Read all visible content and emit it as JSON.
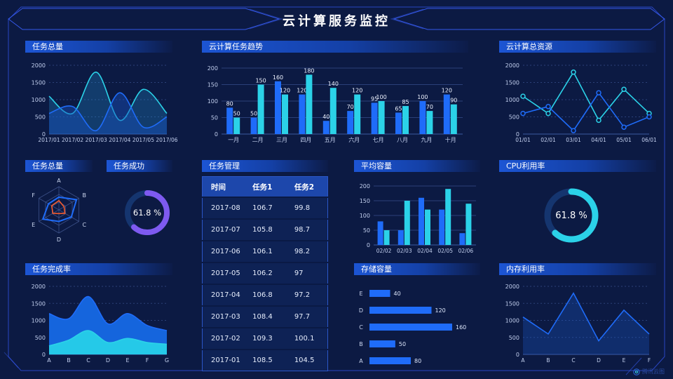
{
  "title": "云计算服务监控",
  "watermark": "腾讯云图",
  "colors": {
    "blue": "#1f6cf9",
    "cyan": "#2bd2e8",
    "purple": "#7e5af0",
    "red": "#f25b2e",
    "track": "#15356f",
    "grid": "#2b4078",
    "axisline": "#3d5aa0",
    "axis": "#c2cfee",
    "label": "#eef3ff",
    "frame": "#2c4ad0"
  },
  "chart_data": [
    {
      "id": "task-total-trend",
      "type": "line",
      "title": "任务总量",
      "smooth": true,
      "dashed": true,
      "categories": [
        "2017/01",
        "2017/02",
        "2017/03",
        "2017/04",
        "2017/05",
        "2017/06"
      ],
      "series": [
        {
          "color": "cyan",
          "values": [
            1100,
            600,
            1800,
            400,
            1300,
            600
          ],
          "fill": "rgba(35,150,215,0.28)"
        },
        {
          "color": "blue",
          "values": [
            600,
            800,
            100,
            1200,
            200,
            500
          ],
          "fill": "rgba(25,80,190,0.45)"
        }
      ],
      "ylim": [
        0,
        2000
      ],
      "yticks": [
        0,
        500,
        1000,
        1500,
        2000
      ]
    },
    {
      "id": "cloud-task-trend",
      "type": "bar",
      "title": "云计算任务趋势",
      "labels": true,
      "categories": [
        "一月",
        "二月",
        "三月",
        "四月",
        "五月",
        "六月",
        "七月",
        "八月",
        "九月",
        "十月"
      ],
      "series": [
        {
          "color": "blue",
          "values": [
            80,
            50,
            160,
            120,
            40,
            70,
            95,
            65,
            100,
            120
          ]
        },
        {
          "color": "cyan",
          "values": [
            50,
            150,
            120,
            180,
            140,
            120,
            100,
            85,
            70,
            90
          ]
        }
      ],
      "ylim": [
        0,
        200
      ],
      "yticks": [
        0,
        50,
        100,
        150,
        200
      ]
    },
    {
      "id": "cloud-total-resources",
      "type": "line",
      "title": "云计算总资源",
      "markers": true,
      "dashed": true,
      "categories": [
        "01/01",
        "02/01",
        "03/01",
        "04/01",
        "05/01",
        "06/01"
      ],
      "series": [
        {
          "color": "cyan",
          "values": [
            1100,
            600,
            1800,
            400,
            1300,
            600
          ]
        },
        {
          "color": "blue",
          "values": [
            600,
            800,
            100,
            1200,
            200,
            500
          ]
        }
      ],
      "ylim": [
        0,
        2000
      ],
      "yticks": [
        0,
        500,
        1000,
        1500,
        2000
      ]
    },
    {
      "id": "task-total-radar",
      "type": "radar",
      "title": "任务总量",
      "indicators": [
        "A",
        "B",
        "C",
        "D",
        "E",
        "F"
      ],
      "max": 100,
      "series": [
        {
          "color": "blue",
          "values": [
            55,
            88,
            62,
            50,
            80,
            52
          ]
        },
        {
          "color": "red",
          "values": [
            40,
            26,
            30,
            16,
            30,
            36
          ]
        }
      ]
    },
    {
      "id": "task-success",
      "type": "donut",
      "title": "任务成功",
      "value": 61.8,
      "label": "61.8 %",
      "color": "purple"
    },
    {
      "id": "task-management",
      "type": "table",
      "title": "任务管理",
      "headers": [
        "时间",
        "任务1",
        "任务2"
      ],
      "rows": [
        [
          "2017-08",
          "106.7",
          "99.8"
        ],
        [
          "2017-07",
          "105.8",
          "98.7"
        ],
        [
          "2017-06",
          "106.1",
          "98.2"
        ],
        [
          "2017-05",
          "106.2",
          "97"
        ],
        [
          "2017-04",
          "106.8",
          "97.2"
        ],
        [
          "2017-03",
          "108.4",
          "97.7"
        ],
        [
          "2017-02",
          "109.3",
          "100.1"
        ],
        [
          "2017-01",
          "108.5",
          "104.5"
        ]
      ]
    },
    {
      "id": "avg-capacity",
      "type": "bar",
      "title": "平均容量",
      "categories": [
        "02/02",
        "02/03",
        "02/04",
        "02/05",
        "02/06"
      ],
      "series": [
        {
          "color": "blue",
          "values": [
            80,
            50,
            160,
            120,
            40
          ]
        },
        {
          "color": "cyan",
          "values": [
            50,
            150,
            120,
            190,
            140
          ]
        }
      ],
      "ylim": [
        0,
        200
      ],
      "yticks": [
        0,
        50,
        100,
        150,
        200
      ]
    },
    {
      "id": "cpu-utilization",
      "type": "donut",
      "title": "CPU利用率",
      "value": 61.8,
      "label": "61.8 %",
      "color": "cyan"
    },
    {
      "id": "task-completion",
      "type": "line",
      "title": "任务完成率",
      "smooth": true,
      "dashed": true,
      "categories": [
        "A",
        "B",
        "C",
        "D",
        "E",
        "F",
        "G"
      ],
      "series": [
        {
          "color": "blue",
          "values": [
            1200,
            1050,
            1700,
            900,
            1200,
            850,
            700
          ],
          "fill": "#1565dd"
        },
        {
          "color": "cyan",
          "values": [
            250,
            420,
            700,
            350,
            470,
            350,
            300
          ],
          "fill": "#25c9e8"
        }
      ],
      "ylim": [
        0,
        2000
      ],
      "yticks": [
        0,
        500,
        1000,
        1500,
        2000
      ]
    },
    {
      "id": "storage-capacity",
      "type": "hbar",
      "title": "存储容量",
      "categories": [
        "E",
        "D",
        "C",
        "B",
        "A"
      ],
      "values": [
        40,
        120,
        160,
        50,
        80
      ],
      "xmax": 160,
      "color": "blue"
    },
    {
      "id": "memory-utilization",
      "type": "line",
      "title": "内存利用率",
      "dashed": true,
      "categories": [
        "A",
        "B",
        "C",
        "D",
        "E",
        "F"
      ],
      "series": [
        {
          "color": "blue",
          "values": [
            1100,
            600,
            1800,
            400,
            1300,
            600
          ],
          "fill": "rgba(28,90,205,0.30)"
        }
      ],
      "ylim": [
        0,
        2000
      ],
      "yticks": [
        0,
        500,
        1000,
        1500,
        2000
      ]
    }
  ]
}
